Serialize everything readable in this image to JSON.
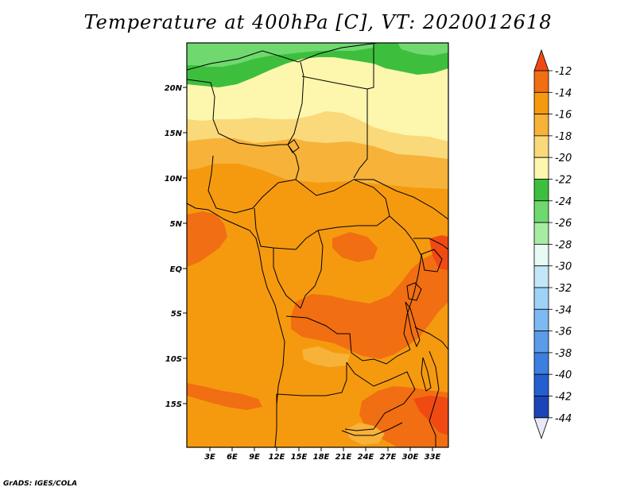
{
  "title": "Temperature at 400hPa [C], VT: 2020012618",
  "credit": "GrADS: IGES/COLA",
  "map": {
    "variable": "Temperature",
    "level": "400hPa",
    "units": "C",
    "valid_time": "2020012618",
    "lat_labels": [
      "20N",
      "15N",
      "10N",
      "5N",
      "EQ",
      "5S",
      "10S",
      "15S"
    ],
    "lon_labels": [
      "3E",
      "6E",
      "9E",
      "12E",
      "15E",
      "18E",
      "21E",
      "24E",
      "27E",
      "30E",
      "33E"
    ]
  },
  "colorbar": {
    "labels": [
      "-12",
      "-14",
      "-16",
      "-18",
      "-20",
      "-22",
      "-24",
      "-26",
      "-28",
      "-30",
      "-32",
      "-34",
      "-36",
      "-38",
      "-40",
      "-42",
      "-44"
    ],
    "colors": [
      "#f04a12",
      "#f26e12",
      "#f59a0f",
      "#f7b23a",
      "#fad97a",
      "#fdf6ad",
      "#3dbf3d",
      "#6fd96f",
      "#a8eba3",
      "#e6fbf6",
      "#c4e6f9",
      "#9fd2f7",
      "#7db9f2",
      "#5a9ce8",
      "#3d7fdf",
      "#245fd2",
      "#1a44b8",
      "#0e1f80"
    ],
    "top_arrow_color": "#f04a12",
    "bottom_arrow_color": "#e8e8f8"
  }
}
